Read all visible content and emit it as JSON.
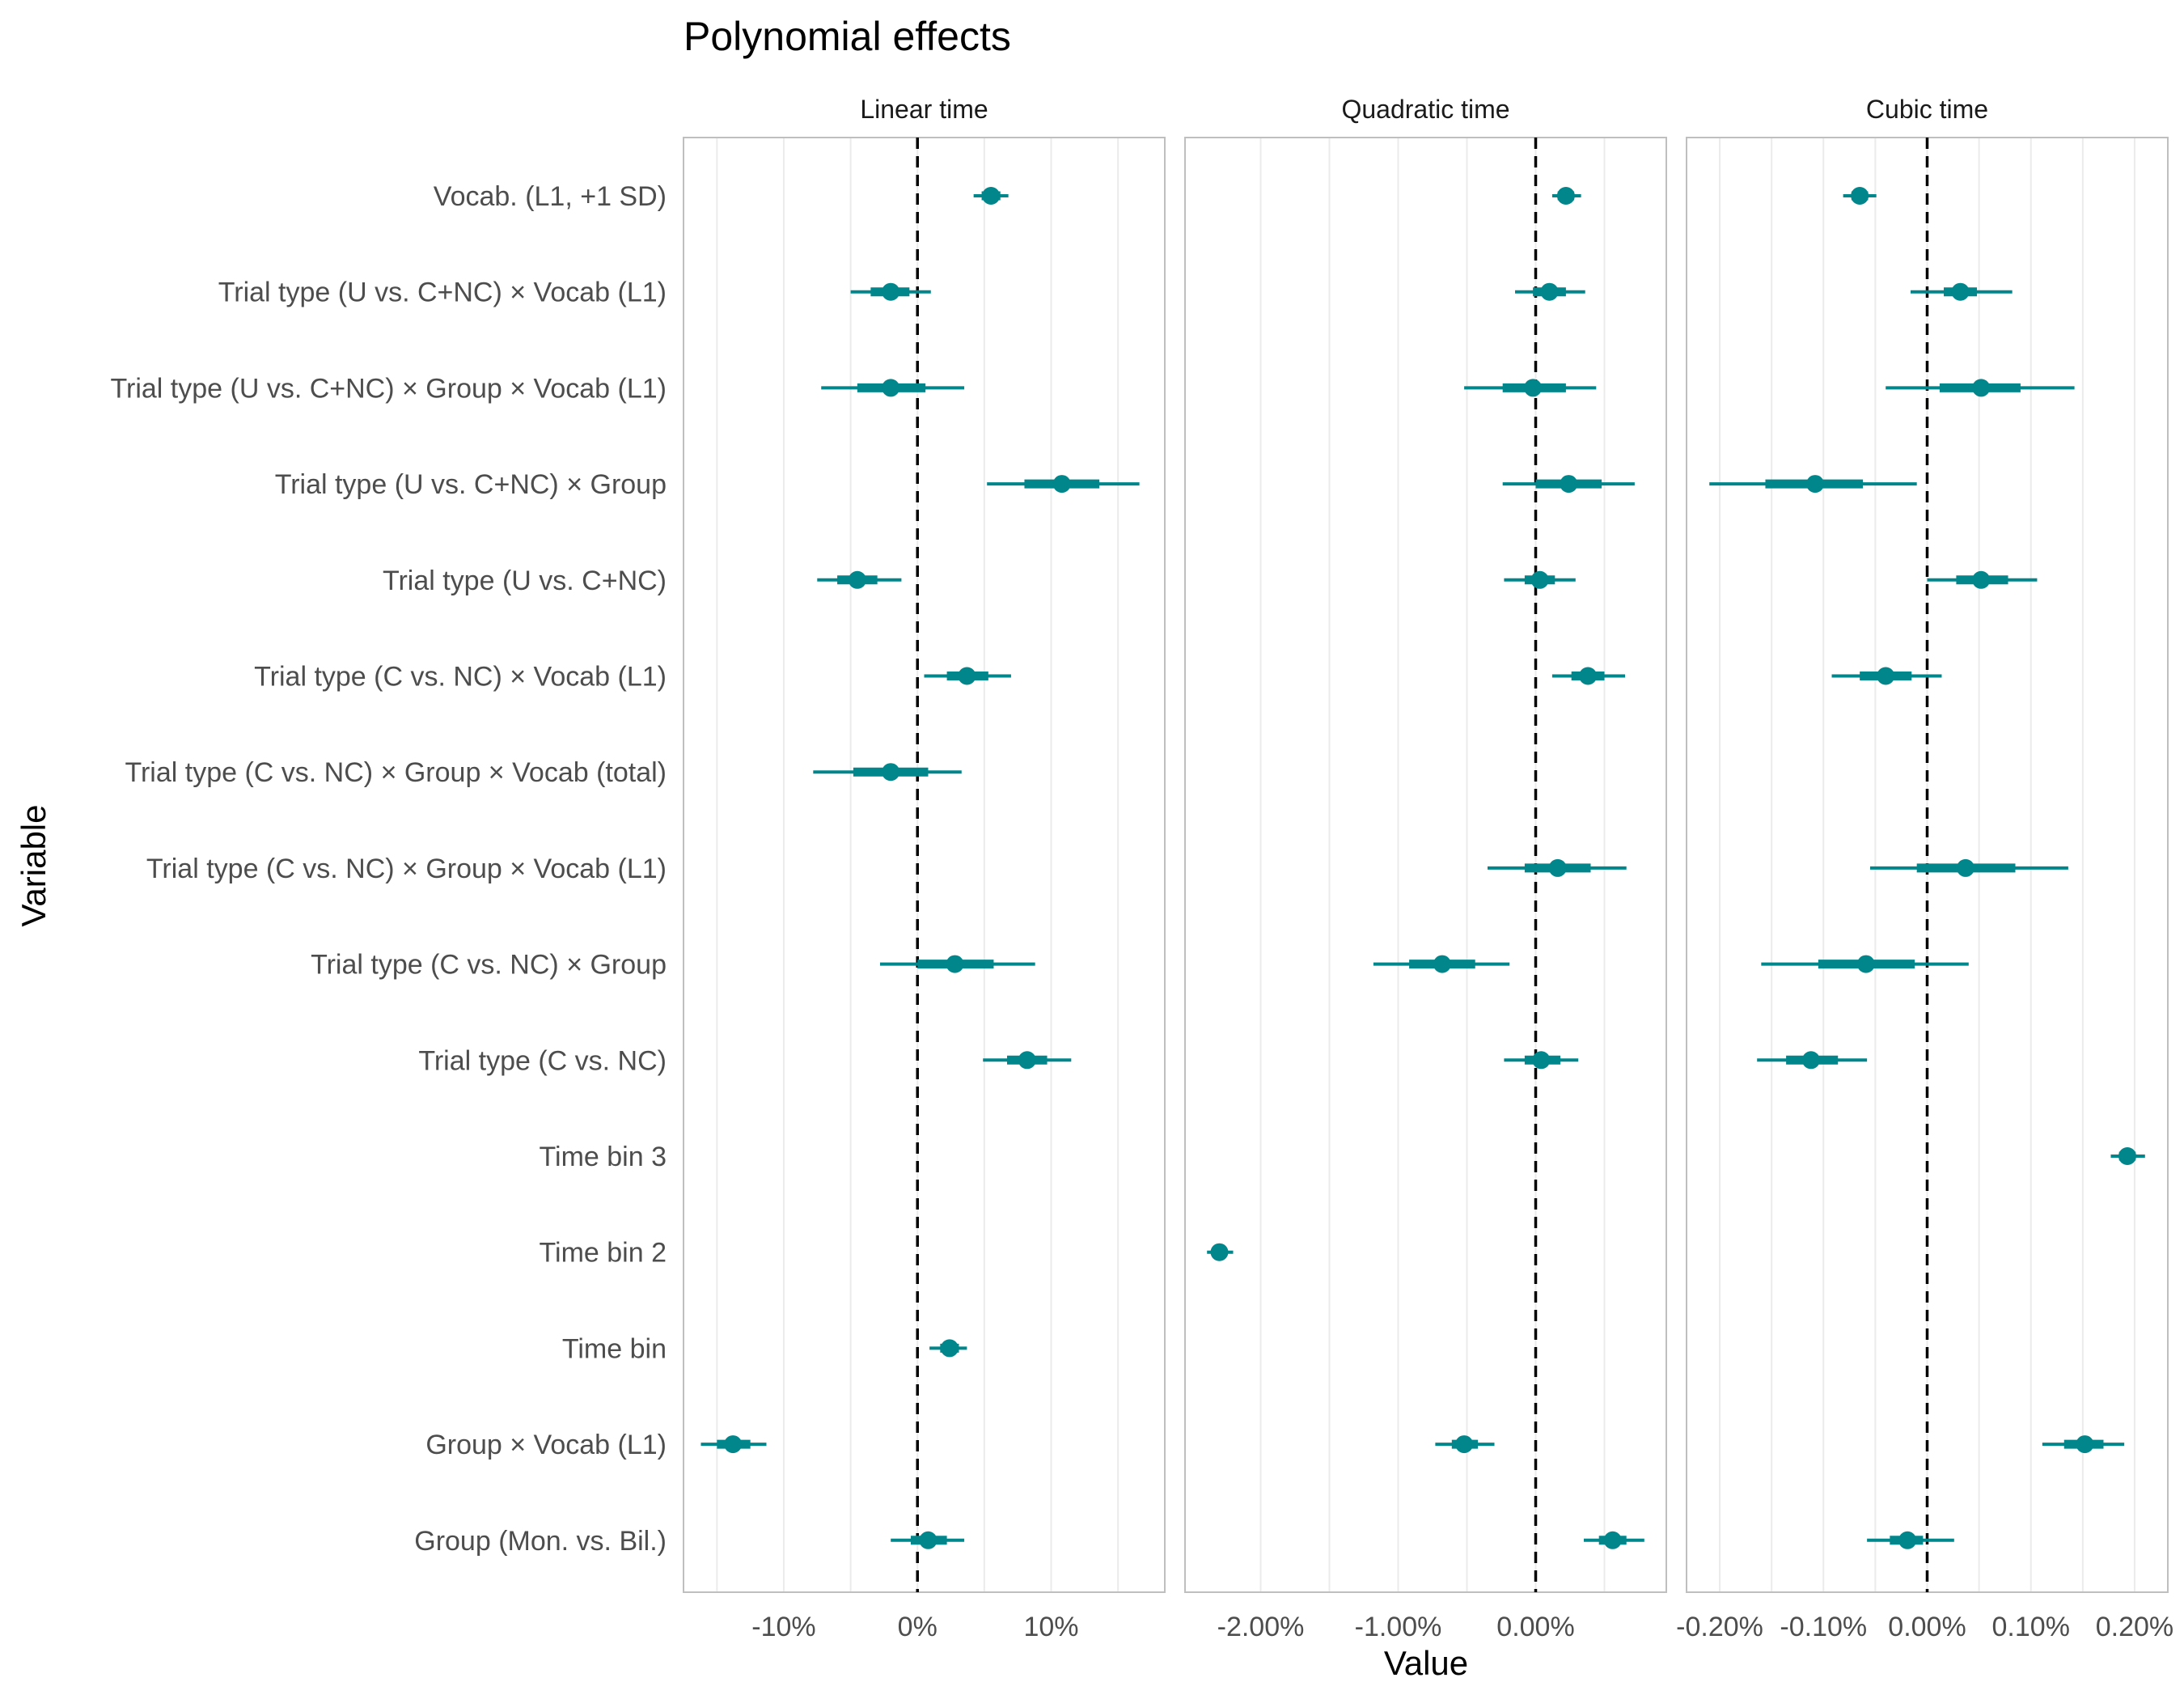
{
  "chart_data": {
    "type": "forest",
    "title": "Polynomial effects",
    "xlabel": "Value",
    "ylabel": "Variable",
    "grid": true,
    "reference_line": 0,
    "colors": {
      "point": "#00868B",
      "line": "#00868B",
      "grid": "#EBEBEB",
      "panel_border": "#BFBFBF",
      "reference": "#000000"
    },
    "variables": [
      "Vocab. (L1, +1 SD)",
      "Trial type (U vs. C+NC) × Vocab (L1)",
      "Trial type (U vs. C+NC) × Group × Vocab (L1)",
      "Trial type (U vs. C+NC) × Group",
      "Trial type (U vs. C+NC)",
      "Trial type (C vs. NC) × Vocab (L1)",
      "Trial type (C vs. NC) × Group × Vocab (total)",
      "Trial type (C vs. NC) × Group × Vocab (L1)",
      "Trial type (C vs. NC) × Group",
      "Trial type (C vs. NC)",
      "Time bin 3",
      "Time bin 2",
      "Time bin",
      "Group × Vocab (L1)",
      "Group (Mon. vs. Bil.)"
    ],
    "panels": [
      {
        "name": "Linear time",
        "xlim": [
          -17.5,
          18.5
        ],
        "ticks": [
          -10,
          0,
          10
        ],
        "tick_labels": [
          "-10%",
          "0%",
          "10%"
        ],
        "minor_grid": [
          -15,
          -5,
          5,
          15
        ],
        "estimates": [
          {
            "variable": "Vocab. (L1, +1 SD)",
            "value": 5.5,
            "inner": [
              4.8,
              6.2
            ],
            "outer": [
              4.2,
              6.8
            ]
          },
          {
            "variable": "Trial type (U vs. C+NC) × Vocab (L1)",
            "value": -2.0,
            "inner": [
              -3.5,
              -0.6
            ],
            "outer": [
              -5.0,
              1.0
            ]
          },
          {
            "variable": "Trial type (U vs. C+NC) × Group × Vocab (L1)",
            "value": -2.0,
            "inner": [
              -4.5,
              0.6
            ],
            "outer": [
              -7.2,
              3.5
            ]
          },
          {
            "variable": "Trial type (U vs. C+NC) × Group",
            "value": 10.8,
            "inner": [
              8.0,
              13.6
            ],
            "outer": [
              5.2,
              16.6
            ]
          },
          {
            "variable": "Trial type (U vs. C+NC)",
            "value": -4.5,
            "inner": [
              -6.0,
              -3.0
            ],
            "outer": [
              -7.5,
              -1.2
            ]
          },
          {
            "variable": "Trial type (C vs. NC) × Vocab (L1)",
            "value": 3.7,
            "inner": [
              2.2,
              5.3
            ],
            "outer": [
              0.5,
              7.0
            ]
          },
          {
            "variable": "Trial type (C vs. NC) × Group × Vocab (total)",
            "value": -2.0,
            "inner": [
              -4.8,
              0.8
            ],
            "outer": [
              -7.8,
              3.3
            ]
          },
          {
            "variable": "Trial type (C vs. NC) × Group",
            "value": 2.8,
            "inner": [
              0.0,
              5.7
            ],
            "outer": [
              -2.8,
              8.8
            ]
          },
          {
            "variable": "Trial type (C vs. NC)",
            "value": 8.2,
            "inner": [
              6.7,
              9.7
            ],
            "outer": [
              4.9,
              11.5
            ]
          },
          {
            "variable": "Time bin",
            "value": 2.4,
            "inner": [
              1.7,
              3.1
            ],
            "outer": [
              0.9,
              3.7
            ]
          },
          {
            "variable": "Group × Vocab (L1)",
            "value": -13.8,
            "inner": [
              -15.0,
              -12.5
            ],
            "outer": [
              -16.2,
              -11.3
            ]
          },
          {
            "variable": "Group (Mon. vs. Bil.)",
            "value": 0.8,
            "inner": [
              -0.5,
              2.2
            ],
            "outer": [
              -2.0,
              3.5
            ]
          }
        ]
      },
      {
        "name": "Quadratic time",
        "xlim": [
          -2.55,
          0.95
        ],
        "ticks": [
          -2,
          -1,
          0
        ],
        "tick_labels": [
          "-2.00%",
          "-1.00%",
          "0.00%"
        ],
        "minor_grid": [
          -1.5,
          -0.5,
          0.5
        ],
        "estimates": [
          {
            "variable": "Vocab. (L1, +1 SD)",
            "value": 0.22,
            "inner": [
              0.16,
              0.28
            ],
            "outer": [
              0.12,
              0.33
            ]
          },
          {
            "variable": "Trial type (U vs. C+NC) × Vocab (L1)",
            "value": 0.1,
            "inner": [
              -0.02,
              0.22
            ],
            "outer": [
              -0.15,
              0.36
            ]
          },
          {
            "variable": "Trial type (U vs. C+NC) × Group × Vocab (L1)",
            "value": -0.02,
            "inner": [
              -0.24,
              0.22
            ],
            "outer": [
              -0.52,
              0.44
            ]
          },
          {
            "variable": "Trial type (U vs. C+NC) × Group",
            "value": 0.24,
            "inner": [
              0.0,
              0.48
            ],
            "outer": [
              -0.24,
              0.72
            ]
          },
          {
            "variable": "Trial type (U vs. C+NC)",
            "value": 0.03,
            "inner": [
              -0.08,
              0.14
            ],
            "outer": [
              -0.23,
              0.29
            ]
          },
          {
            "variable": "Trial type (C vs. NC) × Vocab (L1)",
            "value": 0.38,
            "inner": [
              0.26,
              0.5
            ],
            "outer": [
              0.12,
              0.65
            ]
          },
          {
            "variable": "Trial type (C vs. NC) × Group × Vocab (L1)",
            "value": 0.16,
            "inner": [
              -0.08,
              0.4
            ],
            "outer": [
              -0.35,
              0.66
            ]
          },
          {
            "variable": "Trial type (C vs. NC) × Group",
            "value": -0.68,
            "inner": [
              -0.92,
              -0.44
            ],
            "outer": [
              -1.18,
              -0.19
            ]
          },
          {
            "variable": "Trial type (C vs. NC)",
            "value": 0.04,
            "inner": [
              -0.08,
              0.18
            ],
            "outer": [
              -0.23,
              0.31
            ]
          },
          {
            "variable": "Time bin 2",
            "value": -2.3,
            "inner": [
              -2.35,
              -2.25
            ],
            "outer": [
              -2.39,
              -2.2
            ]
          },
          {
            "variable": "Group × Vocab (L1)",
            "value": -0.52,
            "inner": [
              -0.61,
              -0.42
            ],
            "outer": [
              -0.73,
              -0.3
            ]
          },
          {
            "variable": "Group (Mon. vs. Bil.)",
            "value": 0.56,
            "inner": [
              0.46,
              0.66
            ],
            "outer": [
              0.35,
              0.79
            ]
          }
        ]
      },
      {
        "name": "Cubic time",
        "xlim": [
          -0.232,
          0.232
        ],
        "ticks": [
          -0.2,
          -0.1,
          0,
          0.1,
          0.2
        ],
        "tick_labels": [
          "-0.20%",
          "-0.10%",
          "0.00%",
          "0.10%",
          "0.20%"
        ],
        "minor_grid": [
          -0.15,
          -0.05,
          0.05,
          0.15
        ],
        "estimates": [
          {
            "variable": "Vocab. (L1, +1 SD)",
            "value": -0.065,
            "inner": [
              -0.073,
              -0.057
            ],
            "outer": [
              -0.081,
              -0.049
            ]
          },
          {
            "variable": "Trial type (U vs. C+NC) × Vocab (L1)",
            "value": 0.032,
            "inner": [
              0.016,
              0.048
            ],
            "outer": [
              -0.016,
              0.082
            ]
          },
          {
            "variable": "Trial type (U vs. C+NC) × Group × Vocab (L1)",
            "value": 0.052,
            "inner": [
              0.012,
              0.09
            ],
            "outer": [
              -0.04,
              0.142
            ]
          },
          {
            "variable": "Trial type (U vs. C+NC) × Group",
            "value": -0.108,
            "inner": [
              -0.156,
              -0.062
            ],
            "outer": [
              -0.21,
              -0.01
            ]
          },
          {
            "variable": "Trial type (U vs. C+NC)",
            "value": 0.052,
            "inner": [
              0.028,
              0.078
            ],
            "outer": [
              0.0,
              0.106
            ]
          },
          {
            "variable": "Trial type (C vs. NC) × Vocab (L1)",
            "value": -0.04,
            "inner": [
              -0.065,
              -0.015
            ],
            "outer": [
              -0.092,
              0.014
            ]
          },
          {
            "variable": "Trial type (C vs. NC) × Group × Vocab (L1)",
            "value": 0.037,
            "inner": [
              -0.01,
              0.085
            ],
            "outer": [
              -0.055,
              0.136
            ]
          },
          {
            "variable": "Trial type (C vs. NC) × Group",
            "value": -0.059,
            "inner": [
              -0.105,
              -0.012
            ],
            "outer": [
              -0.16,
              0.04
            ]
          },
          {
            "variable": "Trial type (C vs. NC)",
            "value": -0.112,
            "inner": [
              -0.136,
              -0.086
            ],
            "outer": [
              -0.164,
              -0.058
            ]
          },
          {
            "variable": "Time bin 3",
            "value": 0.193,
            "inner": [
              0.185,
              0.201
            ],
            "outer": [
              0.177,
              0.21
            ]
          },
          {
            "variable": "Group × Vocab (L1)",
            "value": 0.152,
            "inner": [
              0.132,
              0.17
            ],
            "outer": [
              0.111,
              0.19
            ]
          },
          {
            "variable": "Group (Mon. vs. Bil.)",
            "value": -0.019,
            "inner": [
              -0.036,
              -0.004
            ],
            "outer": [
              -0.058,
              0.026
            ]
          }
        ]
      }
    ]
  }
}
